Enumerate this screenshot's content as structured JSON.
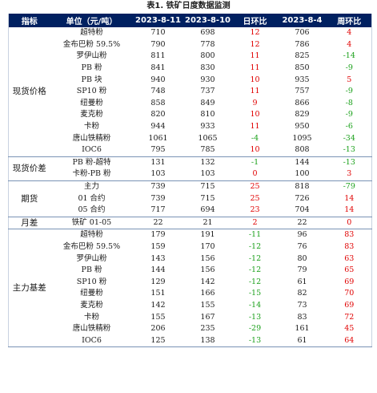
{
  "caption": "表1. 铁矿日度数据监测",
  "headers": [
    "指标",
    "单位（元/吨）",
    "2023-8-11",
    "2023-8-10",
    "日环比",
    "2023-8-4",
    "周环比"
  ],
  "colors": {
    "header_bg": "#002060",
    "positive": "#e00000",
    "negative": "#1aa01a"
  },
  "groups": [
    {
      "name": "现货价格",
      "rows": [
        {
          "item": "超特粉",
          "v1": "710",
          "v2": "698",
          "d": "12",
          "ds": "pos",
          "v3": "706",
          "w": "4",
          "ws": "pos"
        },
        {
          "item": "金布巴粉 59.5%",
          "v1": "790",
          "v2": "778",
          "d": "12",
          "ds": "pos",
          "v3": "786",
          "w": "4",
          "ws": "pos"
        },
        {
          "item": "罗伊山粉",
          "v1": "811",
          "v2": "800",
          "d": "11",
          "ds": "pos",
          "v3": "825",
          "w": "-14",
          "ws": "neg"
        },
        {
          "item": "PB 粉",
          "v1": "841",
          "v2": "830",
          "d": "11",
          "ds": "pos",
          "v3": "850",
          "w": "-9",
          "ws": "neg"
        },
        {
          "item": "PB 块",
          "v1": "940",
          "v2": "930",
          "d": "10",
          "ds": "pos",
          "v3": "935",
          "w": "5",
          "ws": "pos"
        },
        {
          "item": "SP10 粉",
          "v1": "748",
          "v2": "737",
          "d": "11",
          "ds": "pos",
          "v3": "757",
          "w": "-9",
          "ws": "neg"
        },
        {
          "item": "纽曼粉",
          "v1": "858",
          "v2": "849",
          "d": "9",
          "ds": "pos",
          "v3": "866",
          "w": "-8",
          "ws": "neg"
        },
        {
          "item": "麦克粉",
          "v1": "820",
          "v2": "810",
          "d": "10",
          "ds": "pos",
          "v3": "829",
          "w": "-9",
          "ws": "neg"
        },
        {
          "item": "卡粉",
          "v1": "944",
          "v2": "933",
          "d": "11",
          "ds": "pos",
          "v3": "950",
          "w": "-6",
          "ws": "neg"
        },
        {
          "item": "唐山铁精粉",
          "v1": "1061",
          "v2": "1065",
          "d": "-4",
          "ds": "neg",
          "v3": "1095",
          "w": "-34",
          "ws": "neg"
        },
        {
          "item": "IOC6",
          "v1": "795",
          "v2": "785",
          "d": "10",
          "ds": "pos",
          "v3": "808",
          "w": "-13",
          "ws": "neg"
        }
      ]
    },
    {
      "name": "现货价差",
      "rows": [
        {
          "item": "PB 粉-超特",
          "v1": "131",
          "v2": "132",
          "d": "-1",
          "ds": "neg",
          "v3": "144",
          "w": "-13",
          "ws": "neg"
        },
        {
          "item": "卡粉-PB 粉",
          "v1": "103",
          "v2": "103",
          "d": "0",
          "ds": "pos",
          "v3": "100",
          "w": "3",
          "ws": "pos"
        }
      ]
    },
    {
      "name": "期货",
      "rows": [
        {
          "item": "主力",
          "v1": "739",
          "v2": "715",
          "d": "25",
          "ds": "pos",
          "v3": "818",
          "w": "-79",
          "ws": "neg"
        },
        {
          "item": "01 合约",
          "v1": "739",
          "v2": "715",
          "d": "25",
          "ds": "pos",
          "v3": "726",
          "w": "14",
          "ws": "pos"
        },
        {
          "item": "05 合约",
          "v1": "717",
          "v2": "694",
          "d": "23",
          "ds": "pos",
          "v3": "704",
          "w": "14",
          "ws": "pos"
        }
      ]
    },
    {
      "name": "月差",
      "rows": [
        {
          "item": "铁矿 01-05",
          "v1": "22",
          "v2": "21",
          "d": "2",
          "ds": "pos",
          "v3": "22",
          "w": "0",
          "ws": "pos"
        }
      ]
    },
    {
      "name": "主力基差",
      "rows": [
        {
          "item": "超特粉",
          "v1": "179",
          "v2": "191",
          "d": "-11",
          "ds": "neg",
          "v3": "96",
          "w": "83",
          "ws": "pos"
        },
        {
          "item": "金布巴粉 59.5%",
          "v1": "159",
          "v2": "170",
          "d": "-12",
          "ds": "neg",
          "v3": "76",
          "w": "83",
          "ws": "pos"
        },
        {
          "item": "罗伊山粉",
          "v1": "143",
          "v2": "156",
          "d": "-12",
          "ds": "neg",
          "v3": "80",
          "w": "63",
          "ws": "pos"
        },
        {
          "item": "PB 粉",
          "v1": "144",
          "v2": "156",
          "d": "-12",
          "ds": "neg",
          "v3": "79",
          "w": "65",
          "ws": "pos"
        },
        {
          "item": "SP10 粉",
          "v1": "129",
          "v2": "142",
          "d": "-12",
          "ds": "neg",
          "v3": "61",
          "w": "69",
          "ws": "pos"
        },
        {
          "item": "纽曼粉",
          "v1": "151",
          "v2": "166",
          "d": "-15",
          "ds": "neg",
          "v3": "82",
          "w": "70",
          "ws": "pos"
        },
        {
          "item": "麦克粉",
          "v1": "142",
          "v2": "155",
          "d": "-14",
          "ds": "neg",
          "v3": "73",
          "w": "69",
          "ws": "pos"
        },
        {
          "item": "卡粉",
          "v1": "155",
          "v2": "167",
          "d": "-13",
          "ds": "neg",
          "v3": "83",
          "w": "72",
          "ws": "pos"
        },
        {
          "item": "唐山铁精粉",
          "v1": "206",
          "v2": "235",
          "d": "-29",
          "ds": "neg",
          "v3": "161",
          "w": "45",
          "ws": "pos"
        },
        {
          "item": "IOC6",
          "v1": "125",
          "v2": "138",
          "d": "-13",
          "ds": "neg",
          "v3": "61",
          "w": "64",
          "ws": "pos"
        }
      ]
    }
  ]
}
